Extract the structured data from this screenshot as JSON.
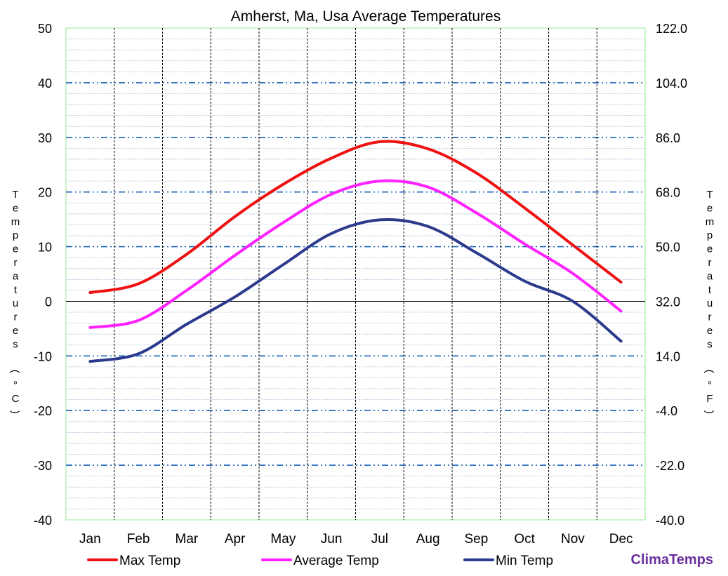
{
  "chart_data": {
    "type": "line",
    "title": "Amherst, Ma, Usa Average Temperatures",
    "categories": [
      "Jan",
      "Feb",
      "Mar",
      "Apr",
      "May",
      "Jun",
      "Jul",
      "Aug",
      "Sep",
      "Oct",
      "Nov",
      "Dec"
    ],
    "ylabel_left": "Temperatures (°C)",
    "ylabel_right": "Temperatures (°F)",
    "ylim": [
      -40,
      50
    ],
    "yticks_left": [
      "50",
      "40",
      "30",
      "20",
      "10",
      "0",
      "-10",
      "-20",
      "-30",
      "-40"
    ],
    "yticks_right": [
      "122.0",
      "104.0",
      "86.0",
      "68.0",
      "50.0",
      "32.0",
      "14.0",
      "-4.0",
      "-22.0",
      "-40.0"
    ],
    "grid": true,
    "legend_position": "bottom",
    "series": [
      {
        "name": "Max Temp",
        "color": "#ee1111",
        "values": [
          1.6,
          3.2,
          8.6,
          15.5,
          21.4,
          26.2,
          29.2,
          27.9,
          23.5,
          17.1,
          10.3,
          3.5
        ]
      },
      {
        "name": "Average Temp",
        "color": "#ff22ff",
        "values": [
          -4.8,
          -3.5,
          2.0,
          8.4,
          14.4,
          19.6,
          22.0,
          20.9,
          16.2,
          10.5,
          5.1,
          -1.8
        ]
      },
      {
        "name": "Min Temp",
        "color": "#2b3a8c",
        "values": [
          -11.0,
          -9.6,
          -4.2,
          0.8,
          6.7,
          12.4,
          14.9,
          13.7,
          8.9,
          3.7,
          0.0,
          -7.3
        ]
      }
    ],
    "brand": "ClimaTemps"
  }
}
